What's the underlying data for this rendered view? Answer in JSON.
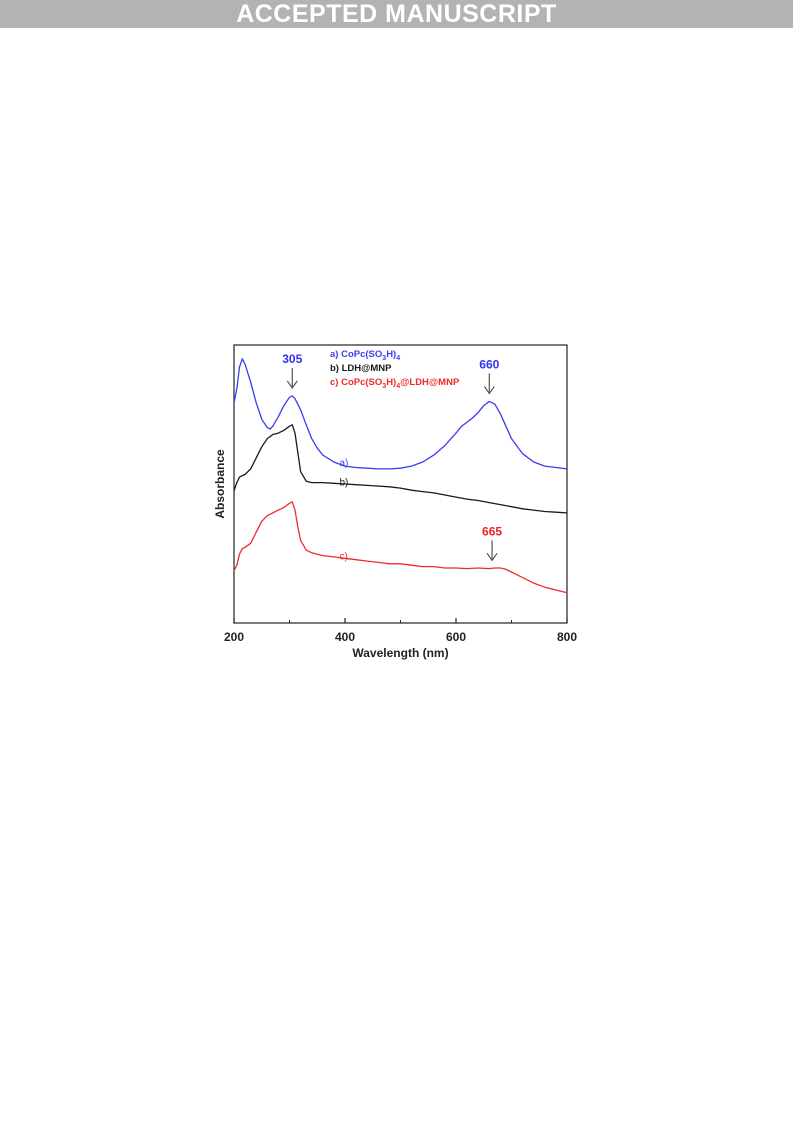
{
  "header": {
    "banner": "ACCEPTED MANUSCRIPT"
  },
  "chart_data": {
    "type": "line",
    "title": "",
    "xlabel": "Wavelength (nm)",
    "ylabel": "Absorbance",
    "xlim": [
      200,
      800
    ],
    "xticks": [
      "200",
      "400",
      "600",
      "800"
    ],
    "y_ticks_shown": false,
    "grid": false,
    "legend_position": "top-center",
    "legend": [
      {
        "prefix": "a)",
        "text": "CoPc(SO",
        "sub1": "3",
        "text2": "H)",
        "sub2": "4",
        "text3": ""
      },
      {
        "prefix": "b)",
        "text": "LDH@MNP",
        "sub1": "",
        "text2": "",
        "sub2": "",
        "text3": ""
      },
      {
        "prefix": "c)",
        "text": "CoPc(SO",
        "sub1": "3",
        "text2": "H)",
        "sub2": "4",
        "text3": "@LDH@MNP"
      }
    ],
    "annotations": [
      {
        "text": "305",
        "x": 305,
        "series": "a)",
        "color": "#3333ee"
      },
      {
        "text": "660",
        "x": 660,
        "series": "a)",
        "color": "#3333ee"
      },
      {
        "text": "665",
        "x": 665,
        "series": "c)",
        "color": "#ee2222"
      }
    ],
    "series": [
      {
        "name": "a)",
        "color": "#3b3bf0",
        "label_x": 390,
        "x": [
          200,
          205,
          210,
          215,
          220,
          230,
          240,
          250,
          260,
          265,
          270,
          280,
          290,
          300,
          305,
          310,
          320,
          330,
          340,
          350,
          360,
          380,
          400,
          420,
          440,
          460,
          480,
          500,
          520,
          540,
          560,
          580,
          600,
          610,
          620,
          630,
          640,
          650,
          660,
          670,
          680,
          690,
          700,
          720,
          740,
          760,
          780,
          800
        ],
        "y": [
          1.3,
          1.4,
          1.56,
          1.62,
          1.58,
          1.45,
          1.3,
          1.18,
          1.12,
          1.11,
          1.13,
          1.2,
          1.28,
          1.34,
          1.35,
          1.33,
          1.25,
          1.14,
          1.04,
          0.97,
          0.92,
          0.87,
          0.84,
          0.83,
          0.825,
          0.82,
          0.82,
          0.825,
          0.84,
          0.87,
          0.92,
          0.99,
          1.08,
          1.13,
          1.16,
          1.19,
          1.23,
          1.28,
          1.31,
          1.29,
          1.22,
          1.13,
          1.04,
          0.93,
          0.87,
          0.84,
          0.83,
          0.82
        ]
      },
      {
        "name": "b)",
        "color": "#1a1a1a",
        "label_x": 390,
        "x": [
          200,
          205,
          210,
          215,
          220,
          230,
          240,
          250,
          260,
          270,
          280,
          290,
          300,
          305,
          310,
          315,
          320,
          330,
          340,
          350,
          360,
          380,
          400,
          420,
          440,
          460,
          480,
          500,
          520,
          540,
          560,
          580,
          600,
          620,
          640,
          660,
          680,
          700,
          720,
          740,
          760,
          780,
          800
        ],
        "y": [
          0.66,
          0.72,
          0.76,
          0.77,
          0.78,
          0.82,
          0.9,
          0.98,
          1.04,
          1.07,
          1.08,
          1.1,
          1.13,
          1.14,
          1.08,
          0.94,
          0.8,
          0.73,
          0.72,
          0.72,
          0.72,
          0.715,
          0.71,
          0.705,
          0.7,
          0.695,
          0.69,
          0.68,
          0.665,
          0.655,
          0.645,
          0.63,
          0.615,
          0.6,
          0.59,
          0.575,
          0.56,
          0.545,
          0.53,
          0.52,
          0.51,
          0.505,
          0.5
        ]
      },
      {
        "name": "c)",
        "color": "#ee2b2b",
        "label_x": 390,
        "x": [
          200,
          205,
          210,
          215,
          220,
          230,
          240,
          250,
          260,
          270,
          280,
          290,
          300,
          305,
          310,
          315,
          320,
          330,
          340,
          350,
          360,
          380,
          400,
          420,
          440,
          460,
          480,
          500,
          520,
          540,
          560,
          580,
          600,
          620,
          640,
          660,
          670,
          680,
          690,
          700,
          720,
          740,
          760,
          780,
          800
        ],
        "y": [
          0.08,
          0.12,
          0.2,
          0.24,
          0.25,
          0.28,
          0.36,
          0.44,
          0.48,
          0.5,
          0.52,
          0.54,
          0.57,
          0.58,
          0.52,
          0.4,
          0.3,
          0.23,
          0.21,
          0.2,
          0.19,
          0.18,
          0.17,
          0.16,
          0.15,
          0.14,
          0.13,
          0.13,
          0.12,
          0.11,
          0.11,
          0.1,
          0.1,
          0.095,
          0.1,
          0.095,
          0.1,
          0.1,
          0.09,
          0.07,
          0.03,
          -0.01,
          -0.04,
          -0.06,
          -0.08
        ]
      }
    ]
  }
}
